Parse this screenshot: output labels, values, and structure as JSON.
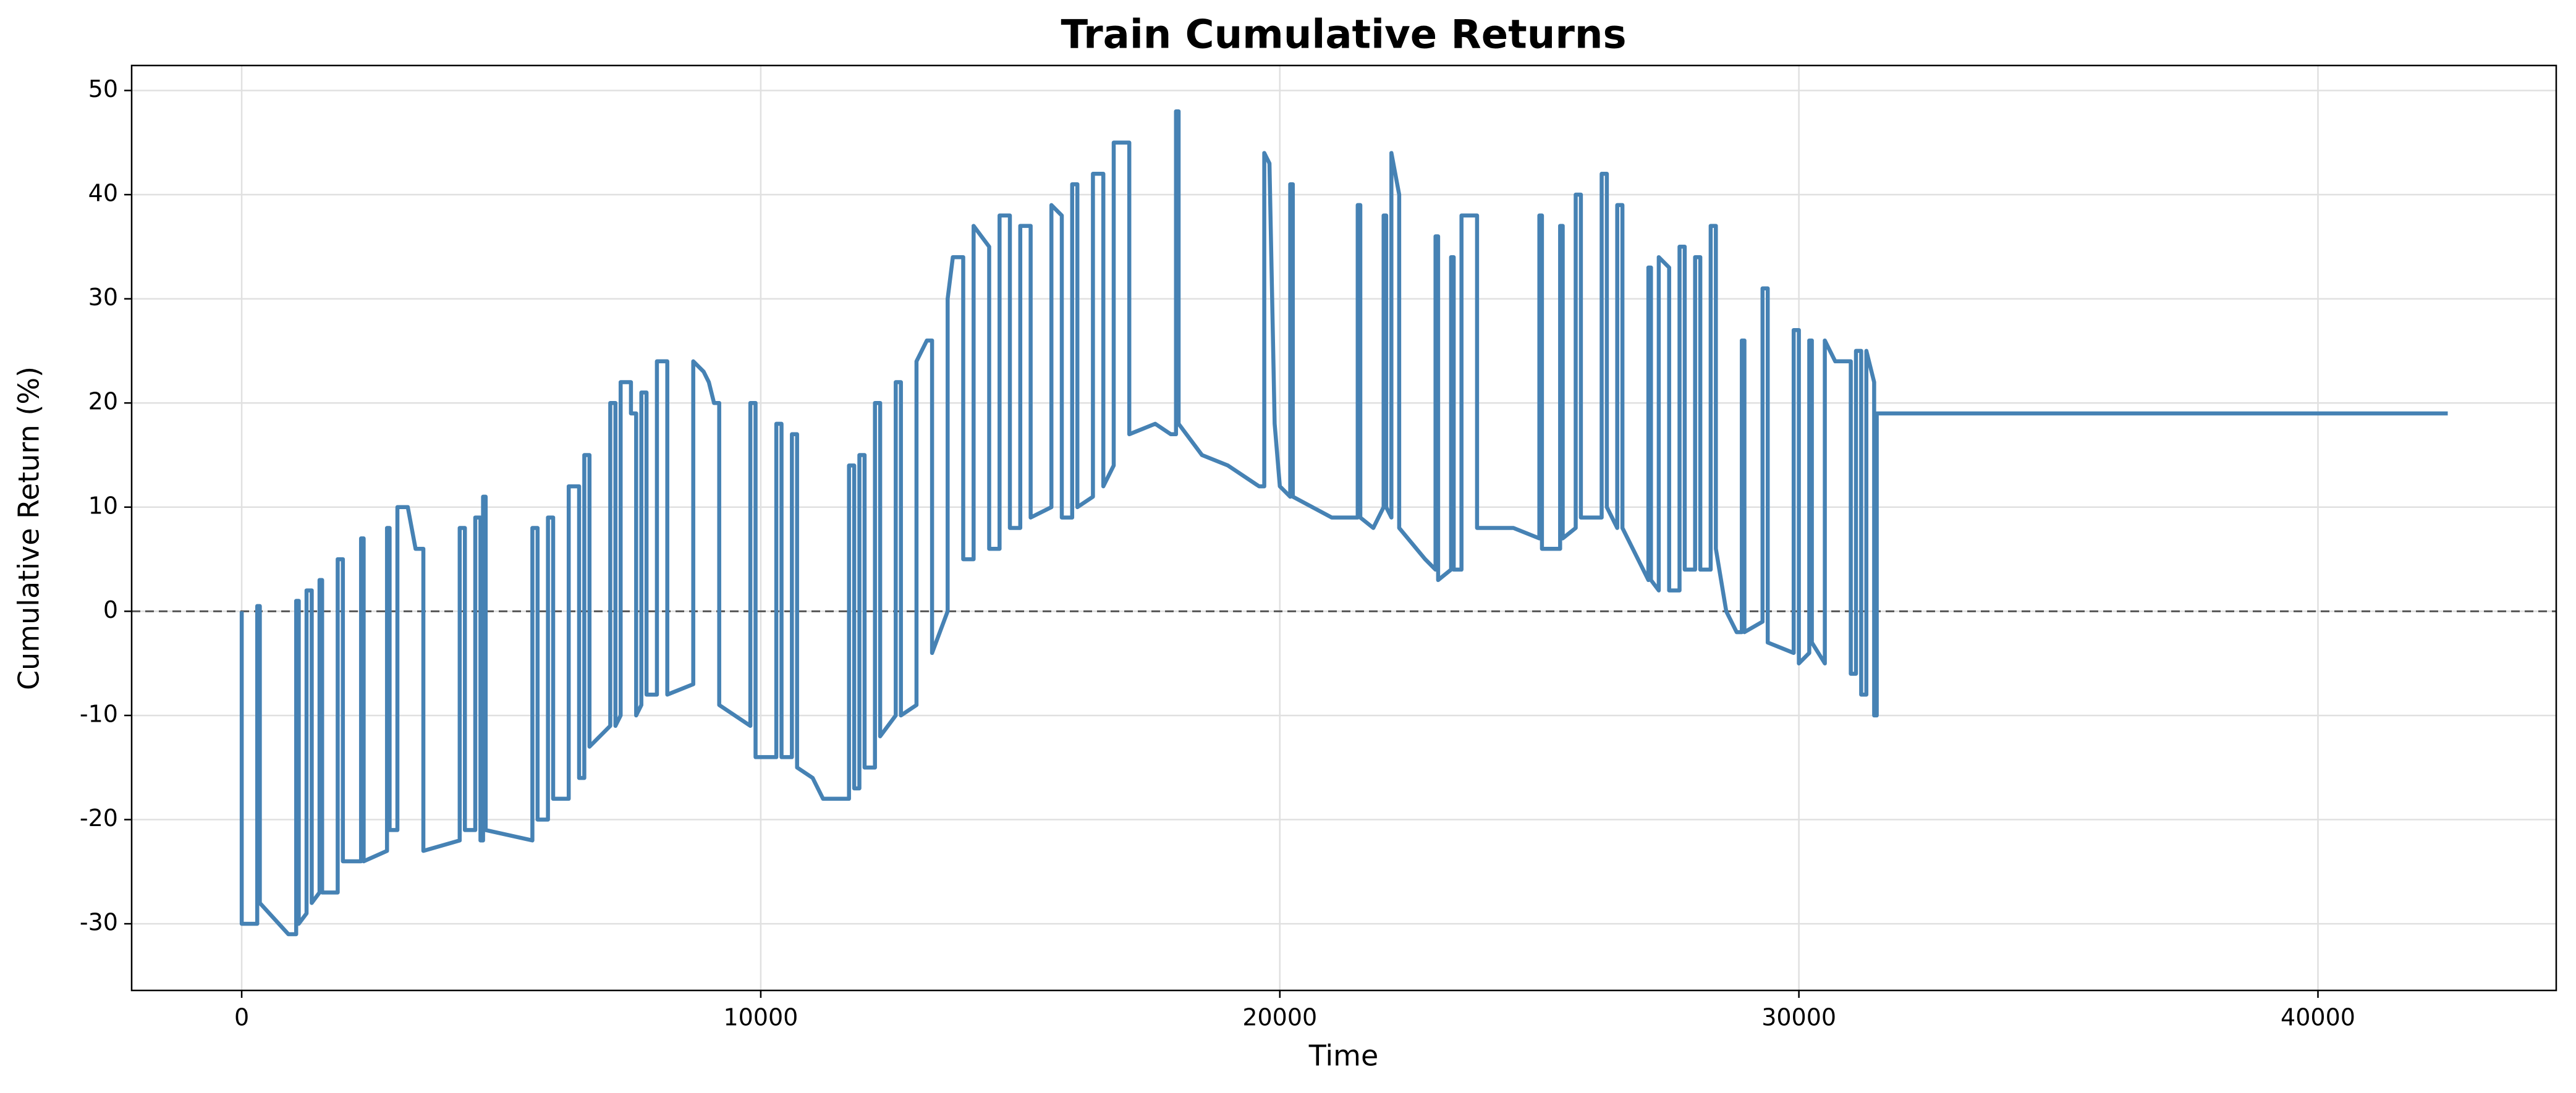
{
  "chart_data": {
    "type": "line",
    "title": "Train Cumulative Returns",
    "x_label": "Time",
    "y_label": "Cumulative Return (%)",
    "xlim": [
      -2120,
      44590
    ],
    "ylim": [
      -36.4,
      52.4
    ],
    "xticks": [
      0,
      10000,
      20000,
      30000,
      40000
    ],
    "yticks": [
      -30,
      -20,
      -10,
      0,
      10,
      20,
      30,
      40,
      50
    ],
    "grid": true,
    "reference_line": 0,
    "series": [
      {
        "color": "#4682b4",
        "x": [
          0,
          0,
          300,
          300,
          350,
          350,
          900,
          1050,
          1050,
          1100,
          1100,
          1250,
          1250,
          1350,
          1350,
          1500,
          1500,
          1550,
          1550,
          1850,
          1850,
          1950,
          1950,
          2300,
          2300,
          2350,
          2350,
          2800,
          2800,
          2850,
          2850,
          3000,
          3000,
          3200,
          3350,
          3500,
          3500,
          4200,
          4200,
          4300,
          4300,
          4500,
          4500,
          4600,
          4600,
          4650,
          4650,
          4700,
          4700,
          5600,
          5600,
          5700,
          5700,
          5900,
          5900,
          6000,
          6000,
          6300,
          6300,
          6500,
          6500,
          6600,
          6600,
          6700,
          6700,
          7100,
          7100,
          7200,
          7200,
          7300,
          7300,
          7500,
          7500,
          7600,
          7600,
          7700,
          7700,
          7800,
          7800,
          8000,
          8000,
          8200,
          8200,
          8700,
          8700,
          8900,
          9000,
          9100,
          9200,
          9200,
          9800,
          9800,
          9900,
          9900,
          10300,
          10300,
          10400,
          10400,
          10600,
          10600,
          10700,
          10700,
          11000,
          11200,
          11700,
          11700,
          11800,
          11800,
          11900,
          11900,
          12000,
          12000,
          12200,
          12200,
          12300,
          12300,
          12600,
          12600,
          12700,
          12700,
          13000,
          13000,
          13200,
          13300,
          13300,
          13600,
          13600,
          13700,
          13900,
          13900,
          14100,
          14100,
          14400,
          14400,
          14600,
          14600,
          14800,
          14800,
          15000,
          15000,
          15200,
          15200,
          15600,
          15600,
          15800,
          15800,
          16000,
          16000,
          16100,
          16100,
          16400,
          16400,
          16600,
          16600,
          16800,
          16800,
          17000,
          17100,
          17100,
          17600,
          17900,
          18000,
          18000,
          18050,
          18050,
          18500,
          19000,
          19600,
          19700,
          19700,
          19800,
          19900,
          20000,
          20200,
          20200,
          20250,
          20250,
          21000,
          21500,
          21500,
          21550,
          21550,
          21800,
          22000,
          22000,
          22050,
          22050,
          22150,
          22150,
          22300,
          22300,
          22800,
          23000,
          23000,
          23050,
          23050,
          23300,
          23300,
          23350,
          23350,
          23500,
          23500,
          23800,
          23800,
          24500,
          25000,
          25000,
          25050,
          25050,
          25400,
          25400,
          25450,
          25450,
          25700,
          25700,
          25800,
          25800,
          26200,
          26200,
          26300,
          26300,
          26500,
          26500,
          26600,
          26600,
          26900,
          27100,
          27100,
          27150,
          27150,
          27300,
          27300,
          27500,
          27500,
          27700,
          27700,
          27800,
          27800,
          28000,
          28000,
          28100,
          28100,
          28300,
          28300,
          28400,
          28400,
          28600,
          28800,
          28900,
          28900,
          28950,
          28950,
          29300,
          29300,
          29400,
          29400,
          29900,
          29900,
          30000,
          30000,
          30200,
          30200,
          30250,
          30250,
          30500,
          30500,
          30700,
          31000,
          31000,
          31100,
          31100,
          31200,
          31200,
          31300,
          31300,
          31400,
          31450,
          31450,
          31500,
          31500,
          42500
        ],
        "values": [
          0,
          -30,
          -30,
          0.5,
          0.5,
          -28,
          -31,
          -31,
          1,
          1,
          -30,
          -29,
          2,
          2,
          -28,
          -27,
          3,
          3,
          -27,
          -27,
          5,
          5,
          -24,
          -24,
          7,
          7,
          -24,
          -23,
          8,
          8,
          -21,
          -21,
          10,
          10,
          6,
          6,
          -23,
          -22,
          8,
          8,
          -21,
          -21,
          9,
          9,
          -22,
          -22,
          11,
          11,
          -21,
          -22,
          8,
          8,
          -20,
          -20,
          9,
          9,
          -18,
          -18,
          12,
          12,
          -16,
          -16,
          15,
          15,
          -13,
          -11,
          20,
          20,
          -11,
          -10,
          22,
          22,
          19,
          19,
          -10,
          -9,
          21,
          21,
          -8,
          -8,
          24,
          24,
          -8,
          -7,
          24,
          23,
          22,
          20,
          20,
          -9,
          -11,
          20,
          20,
          -14,
          -14,
          18,
          18,
          -14,
          -14,
          17,
          17,
          -15,
          -16,
          -18,
          -18,
          14,
          14,
          -17,
          -17,
          15,
          15,
          -15,
          -15,
          20,
          20,
          -12,
          -10,
          22,
          22,
          -10,
          -9,
          24,
          26,
          26,
          -4,
          0,
          30,
          34,
          34,
          5,
          5,
          37,
          35,
          6,
          6,
          38,
          38,
          8,
          8,
          37,
          37,
          9,
          10,
          39,
          38,
          9,
          9,
          41,
          41,
          10,
          11,
          42,
          42,
          12,
          14,
          45,
          45,
          45,
          17,
          18,
          17,
          17,
          48,
          48,
          18,
          15,
          14,
          12,
          12,
          44,
          43,
          18,
          12,
          11,
          41,
          41,
          11,
          9,
          9,
          39,
          39,
          9,
          8,
          10,
          38,
          38,
          10,
          9,
          44,
          40,
          8,
          5,
          4,
          36,
          36,
          3,
          4,
          34,
          34,
          4,
          4,
          38,
          38,
          8,
          8,
          7,
          38,
          38,
          6,
          6,
          37,
          37,
          7,
          8,
          40,
          40,
          9,
          9,
          42,
          42,
          10,
          8,
          39,
          39,
          8,
          5,
          3,
          33,
          33,
          3,
          2,
          34,
          33,
          2,
          2,
          35,
          35,
          4,
          4,
          34,
          34,
          4,
          4,
          37,
          37,
          6,
          0,
          -2,
          -2,
          26,
          26,
          -2,
          -1,
          31,
          31,
          -3,
          -4,
          27,
          27,
          -5,
          -4,
          26,
          26,
          -3,
          -5,
          26,
          24,
          24,
          -6,
          -6,
          25,
          25,
          -8,
          -8,
          25,
          23,
          22,
          -10,
          -10,
          19,
          19
        ]
      }
    ]
  }
}
